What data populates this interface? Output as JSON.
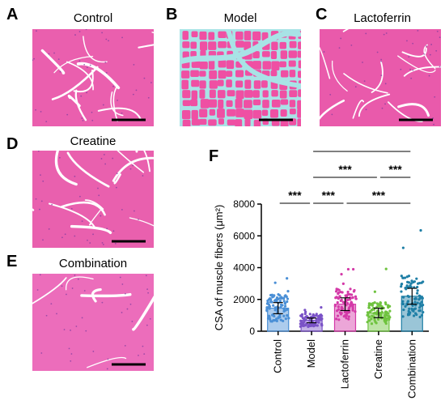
{
  "panels": [
    {
      "letter": "A",
      "title": "Control",
      "bg": "#ea5fae",
      "gap": "#ffffff",
      "texture": "muscle-transverse"
    },
    {
      "letter": "B",
      "title": "Model",
      "bg": "#ef4fa3",
      "gap": "#a8e3e6",
      "texture": "muscle-atrophy"
    },
    {
      "letter": "C",
      "title": "Lactoferrin",
      "bg": "#e95aab",
      "gap": "#ffffff",
      "texture": "muscle-transverse"
    },
    {
      "letter": "D",
      "title": "Creatine",
      "bg": "#e960ae",
      "gap": "#ffffff",
      "texture": "muscle-transverse"
    },
    {
      "letter": "E",
      "title": "Combination",
      "bg": "#ec6dbb",
      "gap": "#ffffff",
      "texture": "muscle-smooth"
    }
  ],
  "panel_f_letter": "F",
  "chart_data": {
    "type": "bar",
    "ylabel": "CSA of muscle fibers (μm²)",
    "ylim": [
      0,
      8000
    ],
    "yticks": [
      "0",
      "2000",
      "4000",
      "6000",
      "8000"
    ],
    "categories": [
      "Control",
      "Model",
      "Lactoferrin",
      "Creatine",
      "Combination"
    ],
    "values": [
      1450,
      680,
      1700,
      1150,
      2200
    ],
    "errors": [
      350,
      150,
      400,
      300,
      500
    ],
    "colors": [
      "#4a8fd6",
      "#7a52c7",
      "#d43aa8",
      "#6fc33f",
      "#1f7fa6"
    ],
    "points_max": [
      4400,
      1500,
      3900,
      4000,
      7100
    ],
    "significance": [
      {
        "from": 0,
        "to": 1,
        "label": "***",
        "level": 0
      },
      {
        "from": 1,
        "to": 2,
        "label": "***",
        "level": 0
      },
      {
        "from": 2,
        "to": 4,
        "label": "***",
        "level": 0
      },
      {
        "from": 1,
        "to": 3,
        "label": "***",
        "level": 1
      },
      {
        "from": 3,
        "to": 4,
        "label": "***",
        "level": 1
      },
      {
        "from": 1,
        "to": 4,
        "label": "***",
        "level": 2
      }
    ]
  }
}
